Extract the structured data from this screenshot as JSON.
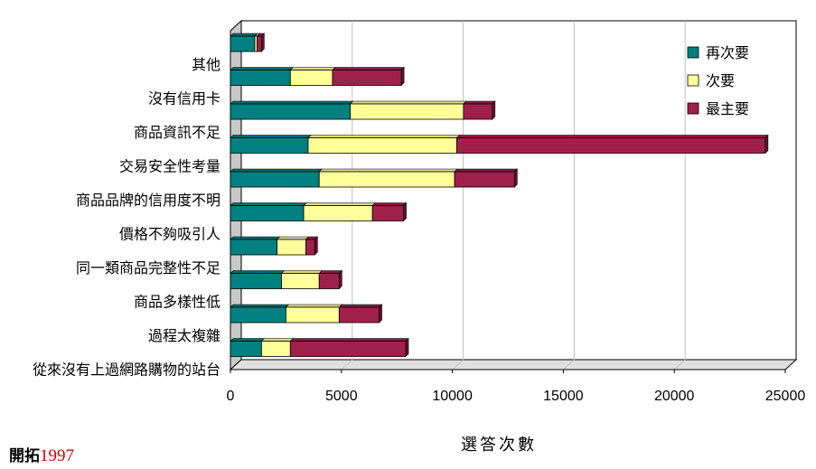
{
  "chart_data": {
    "type": "bar",
    "orientation": "horizontal",
    "stacked": true,
    "categories": [
      "其他",
      "沒有信用卡",
      "商品資訊不足",
      "交易安全性考量",
      "商品品牌的信用度不明",
      "價格不夠吸引人",
      "同一類商品完整性不足",
      "商品多樣性低",
      "過程太複雜",
      "從來沒有上過網路購物的站台"
    ],
    "series": [
      {
        "name": "再次要",
        "color": "#008080",
        "values": [
          1100,
          2700,
          5400,
          3500,
          4000,
          3300,
          2100,
          2300,
          2500,
          1400
        ]
      },
      {
        "name": "次要",
        "color": "#ffff99",
        "values": [
          100,
          1900,
          5100,
          6700,
          6100,
          3100,
          1300,
          1700,
          2400,
          1300
        ]
      },
      {
        "name": "最主要",
        "color": "#a0204c",
        "values": [
          200,
          3100,
          1300,
          13900,
          2700,
          1400,
          400,
          900,
          1800,
          5200
        ]
      }
    ],
    "xlabel": "選答次數",
    "xlim": [
      0,
      25000
    ],
    "xticks": [
      0,
      5000,
      10000,
      15000,
      20000,
      25000
    ],
    "grid": true,
    "legend_position": "top-right",
    "three_d": true
  },
  "credit": {
    "name": "開拓",
    "year": "1997"
  }
}
